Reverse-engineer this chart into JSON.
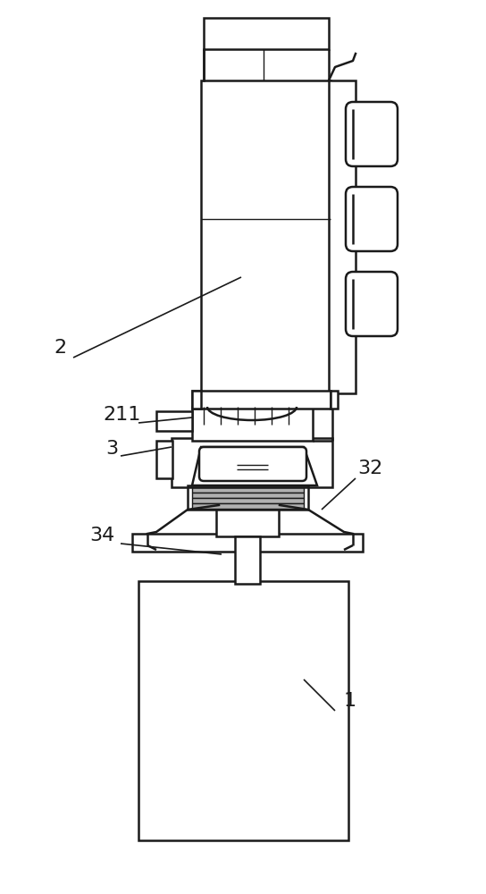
{
  "bg_color": "#ffffff",
  "lc": "#1a1a1a",
  "lw": 1.8,
  "tlw": 1.0,
  "label_fs": 16,
  "figsize": [
    5.44,
    10.0
  ],
  "dpi": 100
}
